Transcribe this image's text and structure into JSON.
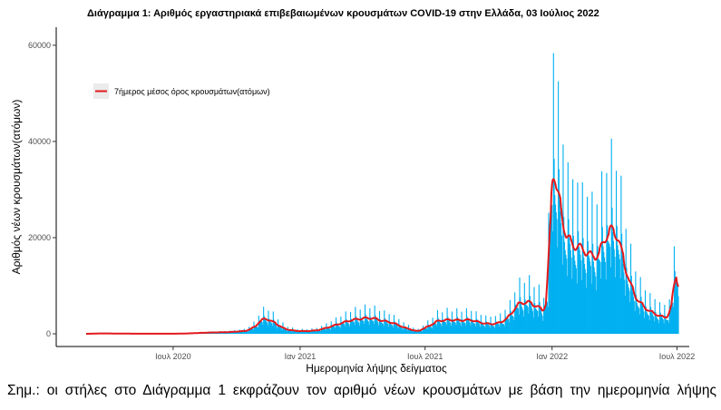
{
  "title": "Διάγραμμα 1: Αριθμός εργαστηριακά επιβεβαιωμένων κρουσμάτων COVID-19 στην Ελλάδα, 03 Ιούλιος 2022",
  "footnote": "Σημ.: οι στήλες στο Διάγραμμα 1 εκφράζουν τον αριθμό νέων κρουσμάτων με βάση την ημερομηνία λήψης",
  "colors": {
    "bars": "#00b0f0",
    "line": "#e31a1c",
    "axis": "#000000"
  },
  "chart_data": {
    "type": "bar",
    "title": "Διάγραμμα 1: Αριθμός εργαστηριακά επιβεβαιωμένων κρουσμάτων COVID-19 στην Ελλάδα, 03 Ιούλιος 2022",
    "xlabel": "Ημερομηνία λήψης δείγματος",
    "ylabel": "Αριθμός νέων κρουσμάτων(ατόμων)",
    "ylim": [
      0,
      63000
    ],
    "xlim": [
      "2020-02-26",
      "2022-07-03"
    ],
    "x_ticks": [
      {
        "date": "2020-07-01",
        "label": "Ιουλ 2020"
      },
      {
        "date": "2021-01-01",
        "label": "Ιαν 2021"
      },
      {
        "date": "2021-07-01",
        "label": "Ιουλ 2021"
      },
      {
        "date": "2022-01-01",
        "label": "Ιαν 2022"
      },
      {
        "date": "2022-07-01",
        "label": "Ιουλ 2022"
      }
    ],
    "y_ticks": [
      {
        "value": 0,
        "label": "0"
      },
      {
        "value": 20000,
        "label": "20000"
      },
      {
        "value": 40000,
        "label": "40000"
      },
      {
        "value": 60000,
        "label": "60000"
      }
    ],
    "grid": false,
    "legend_position": "top-left",
    "series": [
      {
        "type": "bar",
        "description": "daily new cases",
        "anchors": [
          [
            "2020-02-26",
            0
          ],
          [
            "2020-03-20",
            80
          ],
          [
            "2020-04-15",
            40
          ],
          [
            "2020-06-01",
            20
          ],
          [
            "2020-07-15",
            40
          ],
          [
            "2020-08-20",
            250
          ],
          [
            "2020-09-20",
            350
          ],
          [
            "2020-10-15",
            600
          ],
          [
            "2020-10-28",
            1500
          ],
          [
            "2020-11-05",
            2800
          ],
          [
            "2020-11-13",
            3200
          ],
          [
            "2020-11-25",
            2300
          ],
          [
            "2020-12-10",
            1000
          ],
          [
            "2020-12-25",
            600
          ],
          [
            "2021-01-10",
            550
          ],
          [
            "2021-01-25",
            700
          ],
          [
            "2021-02-10",
            1300
          ],
          [
            "2021-02-25",
            2000
          ],
          [
            "2021-03-15",
            2800
          ],
          [
            "2021-04-01",
            3200
          ],
          [
            "2021-04-15",
            3300
          ],
          [
            "2021-05-01",
            2700
          ],
          [
            "2021-05-15",
            2300
          ],
          [
            "2021-06-01",
            1300
          ],
          [
            "2021-06-20",
            500
          ],
          [
            "2021-07-05",
            1500
          ],
          [
            "2021-07-20",
            2700
          ],
          [
            "2021-08-05",
            2900
          ],
          [
            "2021-08-20",
            2800
          ],
          [
            "2021-09-05",
            2900
          ],
          [
            "2021-09-20",
            2300
          ],
          [
            "2021-10-05",
            2000
          ],
          [
            "2021-10-20",
            2400
          ],
          [
            "2021-11-01",
            3800
          ],
          [
            "2021-11-12",
            6100
          ],
          [
            "2021-11-25",
            6700
          ],
          [
            "2021-12-10",
            5800
          ],
          [
            "2021-12-20",
            4600
          ],
          [
            "2021-12-26",
            9000
          ],
          [
            "2021-12-30",
            27000
          ],
          [
            "2022-01-02",
            36500
          ],
          [
            "2022-01-05",
            33000
          ],
          [
            "2022-01-12",
            27000
          ],
          [
            "2022-01-20",
            21000
          ],
          [
            "2022-01-30",
            18500
          ],
          [
            "2022-02-10",
            18000
          ],
          [
            "2022-02-20",
            17000
          ],
          [
            "2022-03-01",
            16000
          ],
          [
            "2022-03-10",
            16500
          ],
          [
            "2022-03-20",
            20500
          ],
          [
            "2022-03-28",
            21500
          ],
          [
            "2022-04-05",
            21000
          ],
          [
            "2022-04-15",
            15000
          ],
          [
            "2022-04-25",
            10000
          ],
          [
            "2022-05-05",
            7000
          ],
          [
            "2022-05-15",
            5500
          ],
          [
            "2022-05-25",
            4500
          ],
          [
            "2022-06-05",
            3800
          ],
          [
            "2022-06-15",
            3300
          ],
          [
            "2022-06-20",
            4200
          ],
          [
            "2022-06-25",
            7500
          ],
          [
            "2022-06-29",
            12500
          ],
          [
            "2022-07-03",
            14000
          ]
        ]
      },
      {
        "type": "line",
        "name": "7ήμερος μέσος όρος κρουσμάτων(ατόμων)",
        "description": "7-day moving average of daily new cases"
      }
    ]
  }
}
